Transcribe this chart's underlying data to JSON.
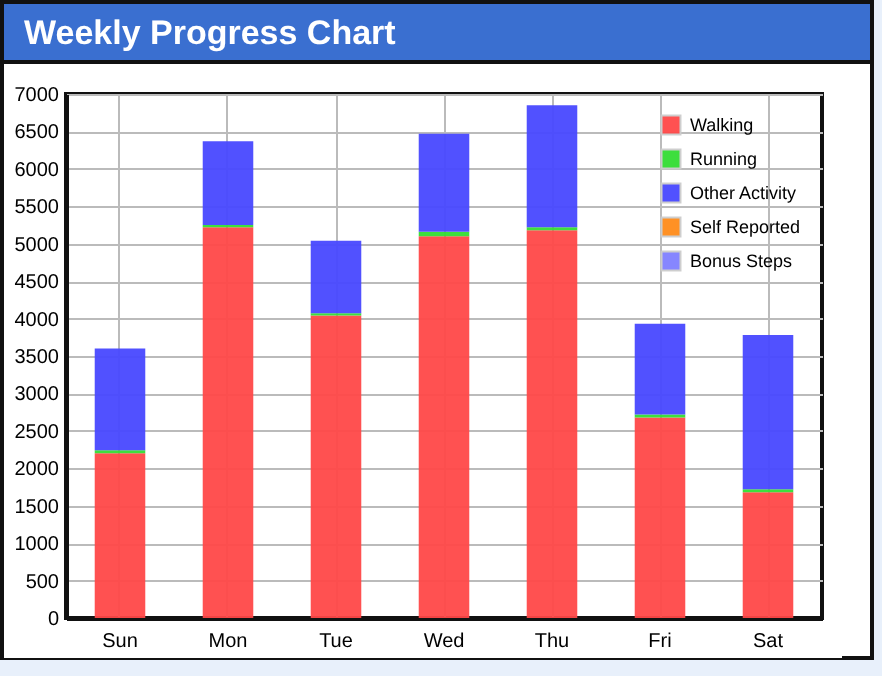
{
  "chart_data": {
    "type": "bar",
    "title": "Weekly Progress Chart",
    "stacked": true,
    "categories": [
      "Sun",
      "Mon",
      "Tue",
      "Wed",
      "Thu",
      "Fri",
      "Sat"
    ],
    "series": [
      {
        "name": "Walking",
        "color": "#ff4848",
        "values": [
          2200,
          5220,
          4040,
          5100,
          5180,
          2680,
          1680
        ]
      },
      {
        "name": "Running",
        "color": "#33dd33",
        "values": [
          40,
          30,
          30,
          60,
          40,
          40,
          40
        ]
      },
      {
        "name": "Other Activity",
        "color": "#4848ff",
        "values": [
          1360,
          1120,
          970,
          1310,
          1630,
          1210,
          2060
        ]
      },
      {
        "name": "Self Reported",
        "color": "#ff8c1a",
        "values": [
          0,
          0,
          0,
          0,
          0,
          0,
          0
        ]
      },
      {
        "name": "Bonus Steps",
        "color": "#8080ff",
        "values": [
          0,
          0,
          0,
          0,
          0,
          0,
          0
        ]
      }
    ],
    "ylim": [
      0,
      7000
    ],
    "yticks": [
      0,
      500,
      1000,
      1500,
      2000,
      2500,
      3000,
      3500,
      4000,
      4500,
      5000,
      5500,
      6000,
      6500,
      7000
    ],
    "grid": true,
    "legend": "top right"
  }
}
